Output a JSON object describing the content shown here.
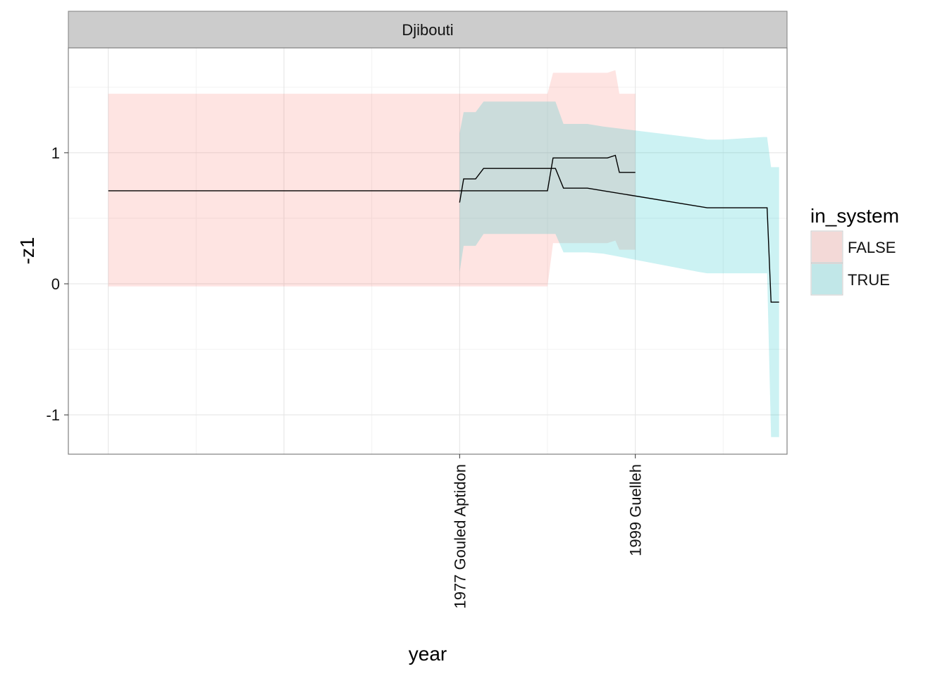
{
  "chart_data": {
    "type": "area",
    "facet": "Djibouti",
    "xlabel": "year",
    "ylabel": "-z1",
    "xlim": [
      1928,
      2018
    ],
    "ylim": [
      -1.3,
      1.8
    ],
    "y_ticks": [
      -1,
      0,
      1
    ],
    "x_ticks": [
      {
        "value": 1977,
        "label": "1977 Gouled Aptidon"
      },
      {
        "value": 1999,
        "label": "1999 Guelleh"
      }
    ],
    "grid": true,
    "legend": {
      "title": "in_system",
      "position": "right",
      "entries": [
        {
          "label": "FALSE",
          "color": "#F8766D"
        },
        {
          "label": "TRUE",
          "color": "#00BFC4"
        }
      ]
    },
    "line_color": "#000000",
    "series": [
      {
        "name": "FALSE",
        "color": "#F8766D",
        "x": [
          1933,
          1988,
          1988.7,
          1991.5,
          1992,
          1995.5,
          1996.5,
          1997,
          1998,
          1999
        ],
        "y": [
          0.71,
          0.71,
          0.96,
          0.96,
          0.96,
          0.96,
          0.98,
          0.85,
          0.85,
          0.85
        ],
        "lower": [
          -0.02,
          -0.02,
          0.31,
          0.31,
          0.31,
          0.31,
          0.33,
          0.26,
          0.26,
          0.26
        ],
        "upper": [
          1.45,
          1.45,
          1.61,
          1.61,
          1.61,
          1.61,
          1.63,
          1.45,
          1.45,
          1.45
        ]
      },
      {
        "name": "TRUE",
        "color": "#00BFC4",
        "x": [
          1977,
          1977.5,
          1979,
          1980,
          1981,
          1984,
          1986,
          1989,
          1990,
          1991,
          1993,
          1995,
          2007,
          2008,
          2009,
          2010,
          2015,
          2015.5,
          2016,
          2017
        ],
        "y": [
          0.62,
          0.8,
          0.8,
          0.88,
          0.88,
          0.88,
          0.88,
          0.88,
          0.73,
          0.73,
          0.73,
          0.71,
          0.59,
          0.58,
          0.58,
          0.58,
          0.58,
          0.58,
          -0.14,
          -0.14
        ],
        "lower": [
          0.09,
          0.29,
          0.29,
          0.38,
          0.38,
          0.38,
          0.38,
          0.38,
          0.24,
          0.24,
          0.24,
          0.23,
          0.09,
          0.08,
          0.08,
          0.08,
          0.08,
          0.08,
          -1.17,
          -1.17
        ],
        "upper": [
          1.15,
          1.31,
          1.31,
          1.39,
          1.39,
          1.39,
          1.39,
          1.39,
          1.22,
          1.22,
          1.22,
          1.2,
          1.11,
          1.1,
          1.1,
          1.1,
          1.12,
          1.12,
          0.89,
          0.89
        ]
      }
    ]
  }
}
